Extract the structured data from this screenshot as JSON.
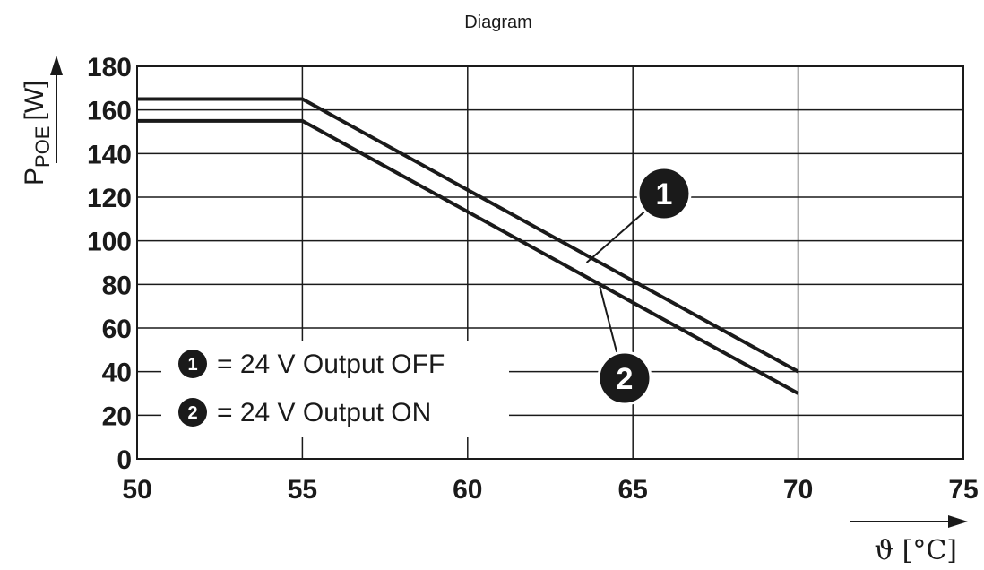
{
  "chart_data": {
    "type": "line",
    "title": "Diagram",
    "ylabel": {
      "main": "P",
      "sub": "POE",
      "unit": "[W]"
    },
    "xlabel": "ϑ [°C]",
    "xlim": [
      50,
      75
    ],
    "ylim": [
      0,
      180
    ],
    "xticks": [
      "50",
      "55",
      "60",
      "65",
      "70",
      "75"
    ],
    "yticks": [
      "0",
      "20",
      "40",
      "60",
      "80",
      "100",
      "120",
      "140",
      "160",
      "180"
    ],
    "grid": true,
    "series": [
      {
        "marker": "1",
        "name": "24 V Output OFF",
        "x": [
          50,
          55,
          70
        ],
        "y": [
          165,
          165,
          40
        ]
      },
      {
        "marker": "2",
        "name": "24 V Output ON",
        "x": [
          50,
          55,
          70
        ],
        "y": [
          155,
          155,
          30
        ]
      }
    ],
    "legend": {
      "placement": "bottom-left",
      "items": [
        {
          "marker": "1",
          "text": "= 24 V Output OFF"
        },
        {
          "marker": "2",
          "text": "= 24 V Output ON"
        }
      ]
    },
    "colors": {
      "line": "#1a1a1a",
      "grid": "#1a1a1a",
      "background": "#ffffff"
    }
  }
}
